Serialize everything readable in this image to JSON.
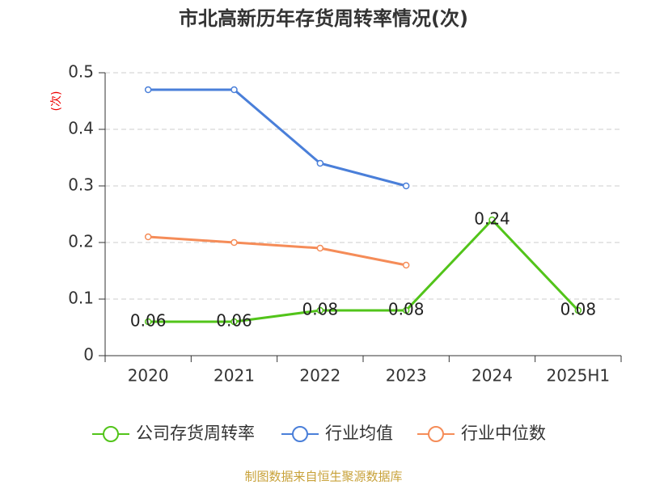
{
  "chart_data": {
    "type": "line",
    "title": "市北高新历年存货周转率情况(次)",
    "y_label": "(次)",
    "source": "制图数据来自恒生聚源数据库",
    "categories": [
      "2020",
      "2021",
      "2022",
      "2023",
      "2024",
      "2025H1"
    ],
    "series": [
      {
        "name": "公司存货周转率",
        "color": "#52c41a",
        "values": [
          0.06,
          0.06,
          0.08,
          0.08,
          0.24,
          0.08
        ],
        "show_labels": true
      },
      {
        "name": "行业均值",
        "color": "#4a7fd9",
        "values": [
          0.47,
          0.47,
          0.34,
          0.3,
          null,
          null
        ],
        "show_labels": false
      },
      {
        "name": "行业中位数",
        "color": "#f58c58",
        "values": [
          0.21,
          0.2,
          0.19,
          0.16,
          null,
          null
        ],
        "show_labels": false
      }
    ],
    "ylim": [
      0,
      0.5
    ],
    "yticks": [
      0,
      0.1,
      0.2,
      0.3,
      0.4,
      0.5
    ],
    "grid": true
  }
}
